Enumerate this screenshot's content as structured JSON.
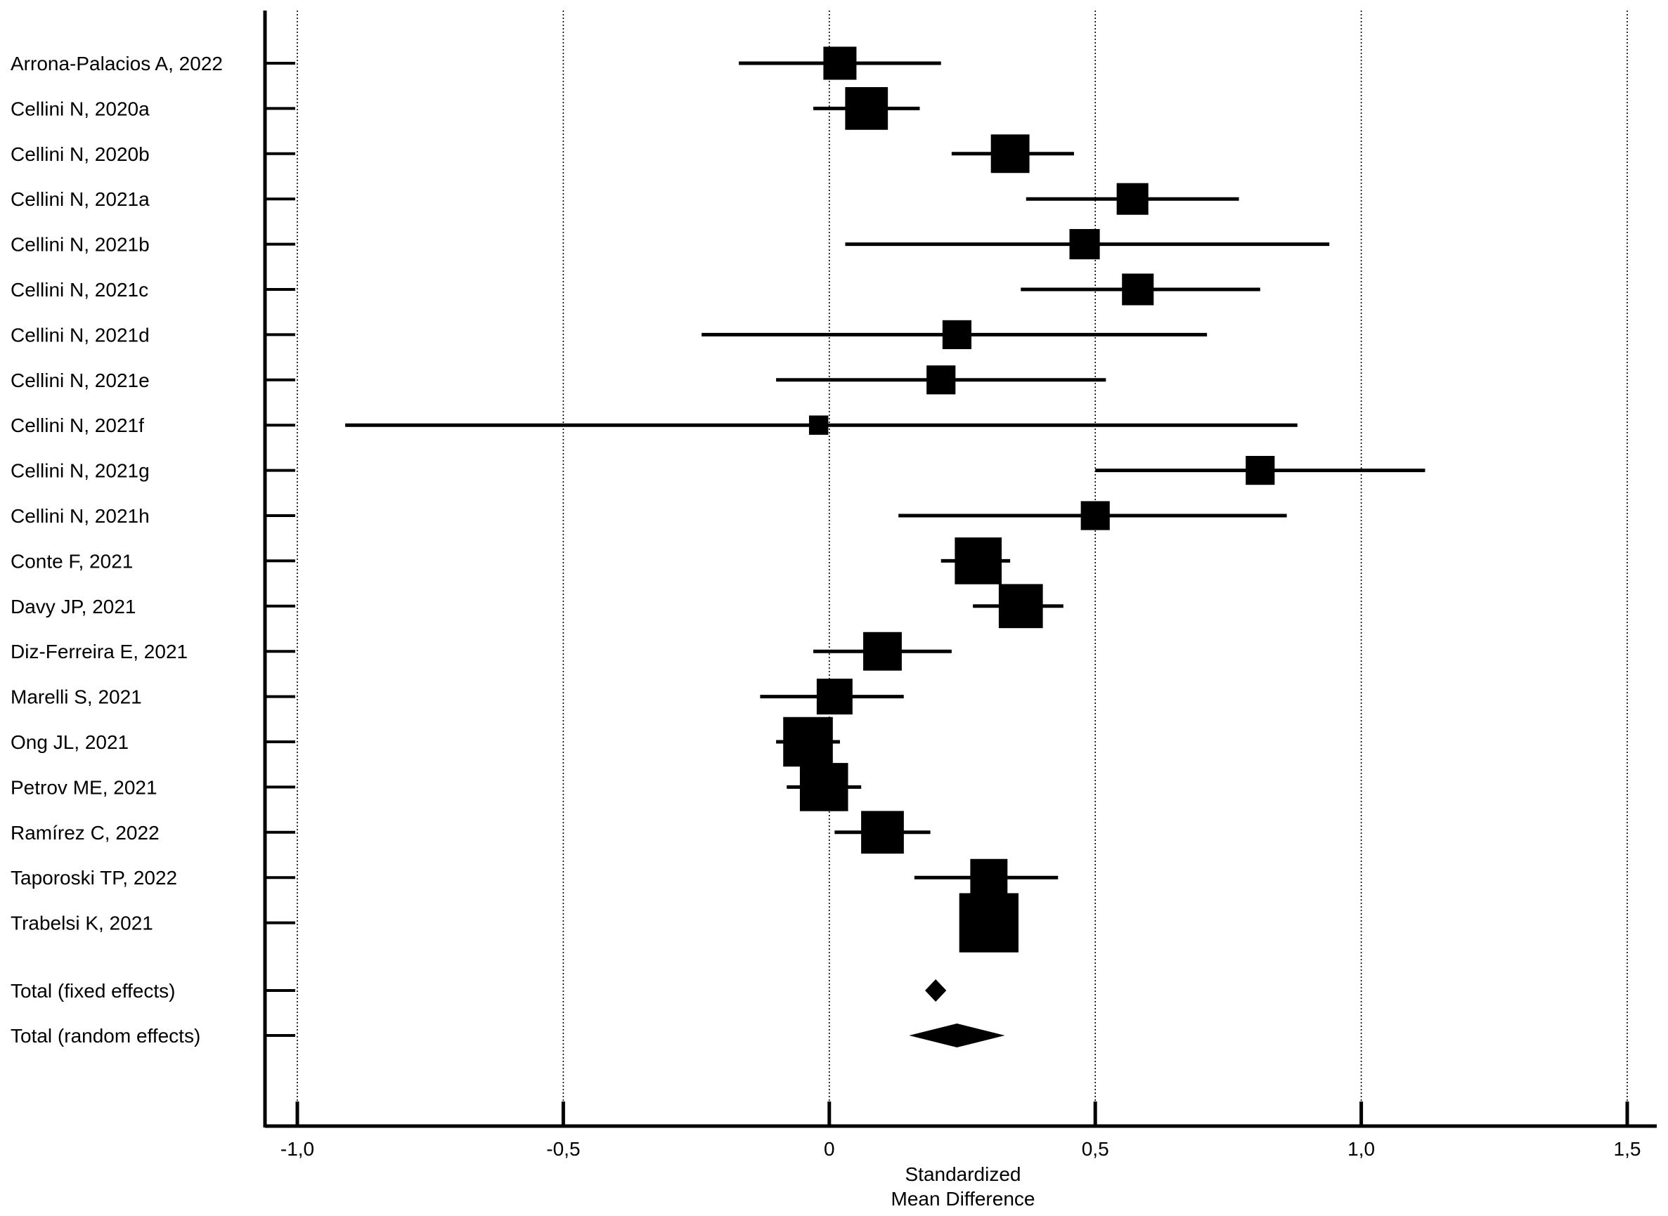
{
  "chart_data": {
    "type": "forest",
    "xlabel": [
      "Standardized",
      "Mean Difference"
    ],
    "xlim": [
      -1.06,
      1.57
    ],
    "xticks": [
      {
        "value": -1.0,
        "label": "-1,0"
      },
      {
        "value": -0.5,
        "label": "-0,5"
      },
      {
        "value": 0.0,
        "label": "0"
      },
      {
        "value": 0.5,
        "label": "0,5"
      },
      {
        "value": 1.0,
        "label": "1,0"
      },
      {
        "value": 1.5,
        "label": "1,5"
      }
    ],
    "gridlines": "vertical-dotted",
    "null_line": 0.0,
    "studies": [
      {
        "label": "Arrona-Palacios A, 2022",
        "smd": 0.02,
        "lo": -0.17,
        "hi": 0.21,
        "weight": 2.4
      },
      {
        "label": "Cellini N, 2020a",
        "smd": 0.07,
        "lo": -0.03,
        "hi": 0.17,
        "weight": 3.1
      },
      {
        "label": "Cellini N, 2020b",
        "smd": 0.34,
        "lo": 0.23,
        "hi": 0.46,
        "weight": 2.8
      },
      {
        "label": "Cellini N, 2021a",
        "smd": 0.57,
        "lo": 0.37,
        "hi": 0.77,
        "weight": 2.3
      },
      {
        "label": "Cellini N, 2021b",
        "smd": 0.48,
        "lo": 0.03,
        "hi": 0.94,
        "weight": 2.2
      },
      {
        "label": "Cellini N, 2021c",
        "smd": 0.58,
        "lo": 0.36,
        "hi": 0.81,
        "weight": 2.3
      },
      {
        "label": "Cellini N, 2021d",
        "smd": 0.24,
        "lo": -0.24,
        "hi": 0.71,
        "weight": 2.1
      },
      {
        "label": "Cellini N, 2021e",
        "smd": 0.21,
        "lo": -0.1,
        "hi": 0.52,
        "weight": 2.1
      },
      {
        "label": "Cellini N, 2021f",
        "smd": -0.02,
        "lo": -0.91,
        "hi": 0.88,
        "weight": 1.4
      },
      {
        "label": "Cellini N, 2021g",
        "smd": 0.81,
        "lo": 0.5,
        "hi": 1.12,
        "weight": 2.1
      },
      {
        "label": "Cellini N, 2021h",
        "smd": 0.5,
        "lo": 0.13,
        "hi": 0.86,
        "weight": 2.1
      },
      {
        "label": "Conte F, 2021",
        "smd": 0.28,
        "lo": 0.21,
        "hi": 0.34,
        "weight": 3.4
      },
      {
        "label": "Davy JP, 2021",
        "smd": 0.36,
        "lo": 0.27,
        "hi": 0.44,
        "weight": 3.2
      },
      {
        "label": "Diz-Ferreira E, 2021",
        "smd": 0.1,
        "lo": -0.03,
        "hi": 0.23,
        "weight": 2.8
      },
      {
        "label": "Marelli S, 2021",
        "smd": 0.01,
        "lo": -0.13,
        "hi": 0.14,
        "weight": 2.6
      },
      {
        "label": "Ong JL, 2021",
        "smd": -0.04,
        "lo": -0.1,
        "hi": 0.02,
        "weight": 3.6
      },
      {
        "label": "Petrov ME, 2021",
        "smd": -0.01,
        "lo": -0.08,
        "hi": 0.06,
        "weight": 3.5
      },
      {
        "label": "Ramírez C, 2022",
        "smd": 0.1,
        "lo": 0.01,
        "hi": 0.19,
        "weight": 3.1
      },
      {
        "label": "Taporoski TP, 2022",
        "smd": 0.3,
        "lo": 0.16,
        "hi": 0.43,
        "weight": 2.7
      },
      {
        "label": "Trabelsi K, 2021",
        "smd": 0.3,
        "lo": 0.26,
        "hi": 0.34,
        "weight": 4.3
      }
    ],
    "totals": [
      {
        "label": "Total (fixed effects)",
        "smd": 0.2,
        "lo": 0.18,
        "hi": 0.22
      },
      {
        "label": "Total (random effects)",
        "smd": 0.24,
        "lo": 0.15,
        "hi": 0.33
      }
    ]
  },
  "colors": {
    "ink": "#000000",
    "background": "#ffffff"
  }
}
